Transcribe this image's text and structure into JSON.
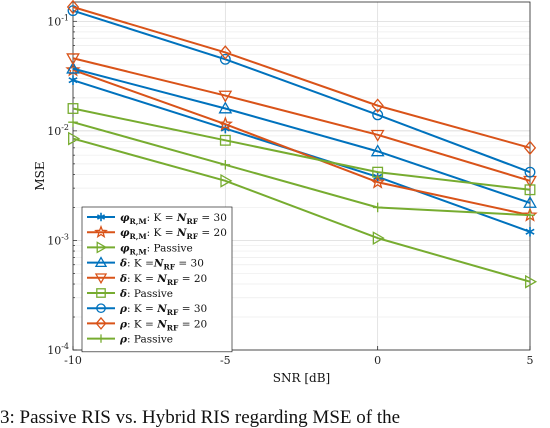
{
  "chart_data": {
    "type": "line",
    "title": "",
    "xlabel": "SNR [dB]",
    "ylabel": "MSE",
    "x": [
      -10,
      -5,
      0,
      5
    ],
    "xlim": [
      -10,
      5
    ],
    "ylim": [
      0.0001,
      0.15
    ],
    "yscale": "log",
    "x_ticks": [
      "-10",
      "-5",
      "0",
      "5"
    ],
    "y_ticks": [
      {
        "value": 0.0001,
        "base": "10",
        "exp": "-4"
      },
      {
        "value": 0.001,
        "base": "10",
        "exp": "-3"
      },
      {
        "value": 0.01,
        "base": "10",
        "exp": "-2"
      },
      {
        "value": 0.1,
        "base": "10",
        "exp": "-1"
      }
    ],
    "grid": true,
    "legend_position": "bottom-left",
    "series": [
      {
        "legend": {
          "sym": "φ",
          "sub": "R,M",
          "rest": ": K = ",
          "n": "N",
          "nsub": "RF",
          "val": " = 30"
        },
        "color": "#0072BD",
        "marker": "asterisk",
        "values": [
          0.029,
          0.0105,
          0.0038,
          0.0012
        ]
      },
      {
        "legend": {
          "sym": "φ",
          "sub": "R,M",
          "rest": ": K = ",
          "n": "N",
          "nsub": "RF",
          "val": " = 20"
        },
        "color": "#D95319",
        "marker": "star",
        "values": [
          0.036,
          0.0115,
          0.0034,
          0.0017
        ]
      },
      {
        "legend": {
          "sym": "φ",
          "sub": "R,M",
          "rest": ": Passive",
          "n": "",
          "nsub": "",
          "val": ""
        },
        "color": "#77AC30",
        "marker": "triangle-right",
        "values": [
          0.0085,
          0.0035,
          0.00105,
          0.00042
        ]
      },
      {
        "legend": {
          "sym": "δ",
          "sub": "",
          "rest": ": K =",
          "n": "N",
          "nsub": "RF",
          "val": " = 30"
        },
        "color": "#0072BD",
        "marker": "triangle-up",
        "values": [
          0.037,
          0.016,
          0.0065,
          0.0022
        ]
      },
      {
        "legend": {
          "sym": "δ",
          "sub": "",
          "rest": ": K = ",
          "n": "N",
          "nsub": "RF",
          "val": " = 20"
        },
        "color": "#D95319",
        "marker": "triangle-down",
        "values": [
          0.046,
          0.021,
          0.0092,
          0.0035
        ]
      },
      {
        "legend": {
          "sym": "δ",
          "sub": "",
          "rest": ": Passive",
          "n": "",
          "nsub": "",
          "val": ""
        },
        "color": "#77AC30",
        "marker": "square",
        "values": [
          0.016,
          0.0082,
          0.0042,
          0.0029
        ]
      },
      {
        "legend": {
          "sym": "ρ",
          "sub": "",
          "rest": ": K = ",
          "n": "N",
          "nsub": "RF",
          "val": " = 30"
        },
        "color": "#0072BD",
        "marker": "circle",
        "values": [
          0.125,
          0.045,
          0.014,
          0.0042
        ]
      },
      {
        "legend": {
          "sym": "ρ",
          "sub": "",
          "rest": ": K = ",
          "n": "N",
          "nsub": "RF",
          "val": " = 20"
        },
        "color": "#D95319",
        "marker": "diamond",
        "values": [
          0.135,
          0.052,
          0.017,
          0.007
        ]
      },
      {
        "legend": {
          "sym": "ρ",
          "sub": "",
          "rest": ": Passive",
          "n": "",
          "nsub": "",
          "val": ""
        },
        "color": "#77AC30",
        "marker": "plus",
        "values": [
          0.012,
          0.0049,
          0.002,
          0.0017
        ]
      }
    ]
  },
  "caption_fragment": "3: Passive RIS vs. Hybrid RIS regarding MSE of the"
}
